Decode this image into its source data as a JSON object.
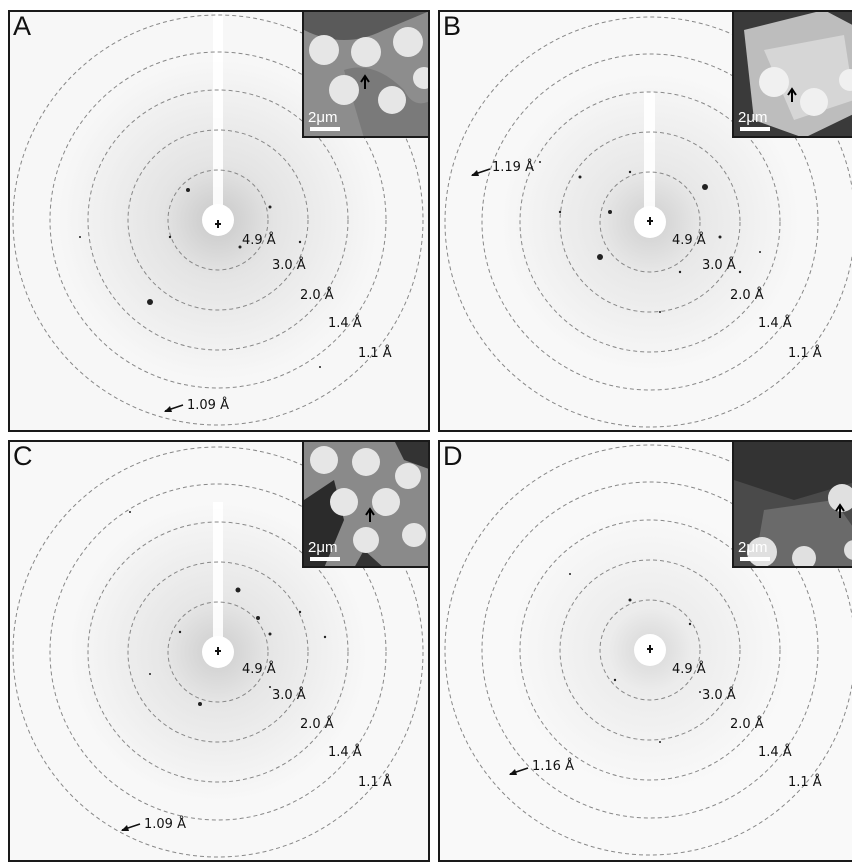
{
  "panels": [
    {
      "letter": "A",
      "ring_labels": [
        "4.9 Å",
        "3.0 Å",
        "2.0 Å",
        "1.4 Å",
        "1.1 Å"
      ],
      "resolution_label": "1.09 Å",
      "scale_bar": "2μm"
    },
    {
      "letter": "B",
      "ring_labels": [
        "4.9 Å",
        "3.0 Å",
        "2.0 Å",
        "1.4 Å",
        "1.1 Å"
      ],
      "resolution_label": "1.19 Å",
      "scale_bar": "2μm"
    },
    {
      "letter": "C",
      "ring_labels": [
        "4.9 Å",
        "3.0 Å",
        "2.0 Å",
        "1.4 Å",
        "1.1 Å"
      ],
      "resolution_label": "1.09 Å",
      "scale_bar": "2μm"
    },
    {
      "letter": "D",
      "ring_labels": [
        "4.9 Å",
        "3.0 Å",
        "2.0 Å",
        "1.4 Å",
        "1.1 Å"
      ],
      "resolution_label": "1.16 Å",
      "scale_bar": "2μm"
    }
  ]
}
